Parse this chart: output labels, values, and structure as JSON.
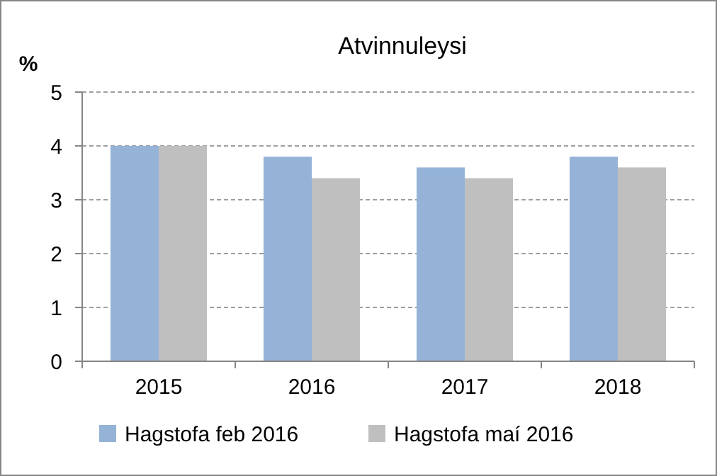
{
  "chart_data": {
    "type": "bar",
    "title": "Atvinnuleysi",
    "ylabel": "%",
    "categories": [
      "2015",
      "2016",
      "2017",
      "2018"
    ],
    "series": [
      {
        "name": "Hagstofa feb 2016",
        "color": "#95b3d7",
        "values": [
          4.0,
          3.8,
          3.6,
          3.8
        ]
      },
      {
        "name": "Hagstofa maí 2016",
        "color": "#bfbfbf",
        "values": [
          4.0,
          3.4,
          3.4,
          3.6
        ]
      }
    ],
    "ylim": [
      0,
      5
    ],
    "yticks": [
      0,
      1,
      2,
      3,
      4,
      5
    ],
    "grid": "y",
    "legend": "bottom"
  }
}
